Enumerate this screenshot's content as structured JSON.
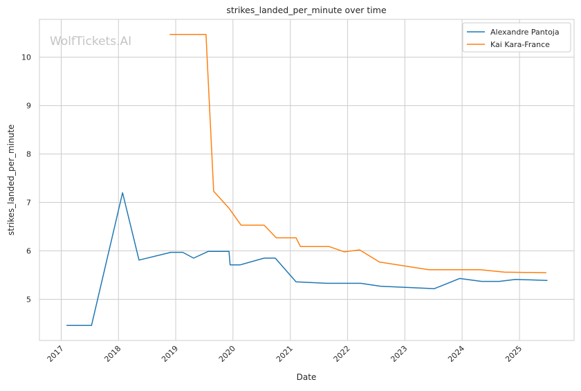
{
  "chart_data": {
    "type": "line",
    "title": "strikes_landed_per_minute over time",
    "xlabel": "Date",
    "ylabel": "strikes_landed_per_minute",
    "watermark": "WolfTickets.AI",
    "x_ticks": [
      "2017",
      "2018",
      "2019",
      "2020",
      "2021",
      "2022",
      "2023",
      "2024",
      "2025"
    ],
    "y_ticks": [
      5,
      6,
      7,
      8,
      9,
      10
    ],
    "xlim": [
      "2016-08-15",
      "2025-12-15"
    ],
    "ylim": [
      4.15,
      10.78
    ],
    "grid": true,
    "legend_position": "top-right",
    "series": [
      {
        "name": "Alexandre Pantoja",
        "color": "#1f77b4",
        "points": [
          [
            "2017-02-04",
            4.46
          ],
          [
            "2017-07-13",
            4.46
          ],
          [
            "2018-01-27",
            7.2
          ],
          [
            "2018-05-12",
            5.81
          ],
          [
            "2018-12-01",
            5.97
          ],
          [
            "2019-02-15",
            5.97
          ],
          [
            "2019-04-25",
            5.85
          ],
          [
            "2019-07-28",
            5.99
          ],
          [
            "2019-12-07",
            5.99
          ],
          [
            "2019-12-14",
            5.71
          ],
          [
            "2020-02-15",
            5.71
          ],
          [
            "2020-07-18",
            5.85
          ],
          [
            "2020-09-27",
            5.85
          ],
          [
            "2021-02-06",
            5.36
          ],
          [
            "2021-08-21",
            5.33
          ],
          [
            "2022-03-26",
            5.33
          ],
          [
            "2022-07-30",
            5.27
          ],
          [
            "2023-07-08",
            5.22
          ],
          [
            "2023-12-16",
            5.43
          ],
          [
            "2024-05-04",
            5.37
          ],
          [
            "2024-08-25",
            5.37
          ],
          [
            "2024-12-07",
            5.41
          ],
          [
            "2025-06-28",
            5.39
          ]
        ]
      },
      {
        "name": "Kai Kara-France",
        "color": "#ff7f0e",
        "points": [
          [
            "2018-11-24",
            10.47
          ],
          [
            "2019-07-13",
            10.47
          ],
          [
            "2019-08-31",
            7.23
          ],
          [
            "2019-12-07",
            6.88
          ],
          [
            "2020-02-22",
            6.53
          ],
          [
            "2020-07-18",
            6.53
          ],
          [
            "2020-10-03",
            6.27
          ],
          [
            "2021-02-06",
            6.27
          ],
          [
            "2021-03-06",
            6.09
          ],
          [
            "2021-09-04",
            6.09
          ],
          [
            "2021-12-11",
            5.98
          ],
          [
            "2022-03-19",
            6.02
          ],
          [
            "2022-07-23",
            5.77
          ],
          [
            "2023-06-03",
            5.61
          ],
          [
            "2024-04-27",
            5.61
          ],
          [
            "2024-09-28",
            5.56
          ],
          [
            "2025-06-21",
            5.55
          ]
        ]
      }
    ]
  }
}
